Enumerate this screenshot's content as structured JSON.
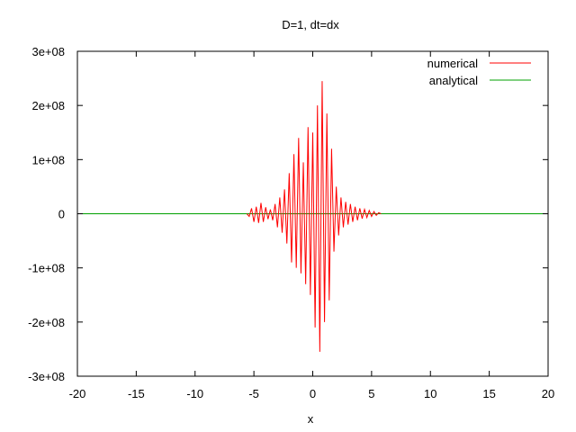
{
  "chart_data": {
    "type": "line",
    "title": "D=1, dt=dx",
    "xlabel": "x",
    "ylabel": "",
    "xlim": [
      -20,
      20
    ],
    "ylim": [
      -300000000,
      300000000
    ],
    "x_ticks": [
      -20,
      -15,
      -10,
      -5,
      0,
      5,
      10,
      15,
      20
    ],
    "x_tick_labels": [
      "-20",
      "-15",
      "-10",
      "-5",
      "0",
      "5",
      "10",
      "15",
      "20"
    ],
    "y_ticks": [
      -300000000,
      -200000000,
      -100000000,
      0,
      100000000,
      200000000,
      300000000
    ],
    "y_tick_labels": [
      "-3e+08",
      "-2e+08",
      "-1e+08",
      "0",
      "1e+08",
      "2e+08",
      "3e+08"
    ],
    "grid": false,
    "legend_position": "top-right",
    "series": [
      {
        "name": "numerical",
        "color": "#ff0000",
        "x": [
          -5.6,
          -5.4,
          -5.2,
          -5.0,
          -4.8,
          -4.6,
          -4.4,
          -4.2,
          -4.0,
          -3.8,
          -3.6,
          -3.4,
          -3.2,
          -3.0,
          -2.8,
          -2.6,
          -2.4,
          -2.2,
          -2.0,
          -1.8,
          -1.6,
          -1.4,
          -1.2,
          -1.0,
          -0.8,
          -0.6,
          -0.4,
          -0.2,
          0.0,
          0.2,
          0.4,
          0.6,
          0.8,
          1.0,
          1.2,
          1.4,
          1.6,
          1.8,
          2.0,
          2.2,
          2.4,
          2.6,
          2.8,
          3.0,
          3.2,
          3.4,
          3.6,
          3.8,
          4.0,
          4.2,
          4.4,
          4.6,
          4.8,
          5.0,
          5.2,
          5.4,
          5.6,
          5.8
        ],
        "y": [
          0,
          -5000000,
          10000000,
          -15000000,
          13000000,
          -17000000,
          20000000,
          -15000000,
          12000000,
          -10000000,
          8000000,
          -12000000,
          18000000,
          -25000000,
          30000000,
          -35000000,
          45000000,
          -55000000,
          75000000,
          -90000000,
          110000000,
          -100000000,
          140000000,
          -110000000,
          95000000,
          -130000000,
          160000000,
          -150000000,
          150000000,
          -210000000,
          200000000,
          -255000000,
          245000000,
          -200000000,
          185000000,
          -160000000,
          120000000,
          -70000000,
          50000000,
          -40000000,
          30000000,
          -25000000,
          22000000,
          -20000000,
          18000000,
          -15000000,
          13000000,
          -12000000,
          10000000,
          -9000000,
          8000000,
          -7000000,
          6000000,
          -5000000,
          4000000,
          -3000000,
          2000000,
          0
        ]
      },
      {
        "name": "analytical",
        "color": "#00a000",
        "x": [
          -20,
          20
        ],
        "y": [
          0,
          0
        ]
      }
    ]
  }
}
